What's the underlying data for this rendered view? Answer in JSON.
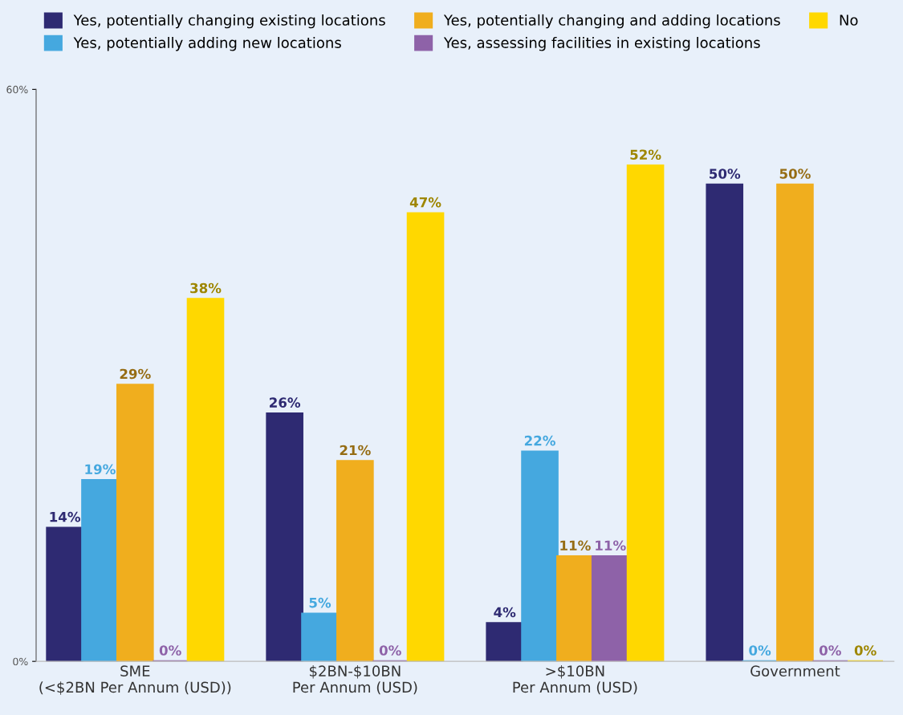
{
  "chart_data": {
    "type": "bar",
    "categories": [
      "SME\n(<$2BN Per Annum (USD))",
      "$2BN-$10BN\nPer Annum (USD)",
      ">$10BN\nPer Annum (USD)",
      "Government"
    ],
    "series": [
      {
        "name": "Yes, potentially changing existing locations",
        "color": "#2e2a72",
        "values": [
          14,
          26,
          4,
          50
        ],
        "value_labels": [
          "14%",
          "26%",
          "4%",
          "50%"
        ]
      },
      {
        "name": "Yes, potentially adding new locations",
        "color": "#45a8df",
        "values": [
          19,
          5,
          22,
          0
        ],
        "value_labels": [
          "19%",
          "5%",
          "22%",
          "0%"
        ]
      },
      {
        "name": "Yes, potentially changing and adding locations",
        "color": "#f0ae1e",
        "values": [
          29,
          21,
          11,
          50
        ],
        "value_labels": [
          "29%",
          "21%",
          "11%",
          "50%"
        ]
      },
      {
        "name": "Yes, assessing facilities in existing locations",
        "color": "#8e62a8",
        "values": [
          0,
          0,
          11,
          0
        ],
        "value_labels": [
          "0%",
          "0%",
          "11%",
          "0%"
        ]
      },
      {
        "name": "No",
        "color": "#ffd800",
        "values": [
          38,
          47,
          52,
          0
        ],
        "value_labels": [
          "38%",
          "47%",
          "52%",
          "0%"
        ]
      }
    ],
    "ylim": [
      0,
      60
    ],
    "yticks": [
      {
        "value": 0,
        "label": "0%"
      },
      {
        "value": 60,
        "label": "60%"
      }
    ],
    "grid": false,
    "legend": "top"
  }
}
